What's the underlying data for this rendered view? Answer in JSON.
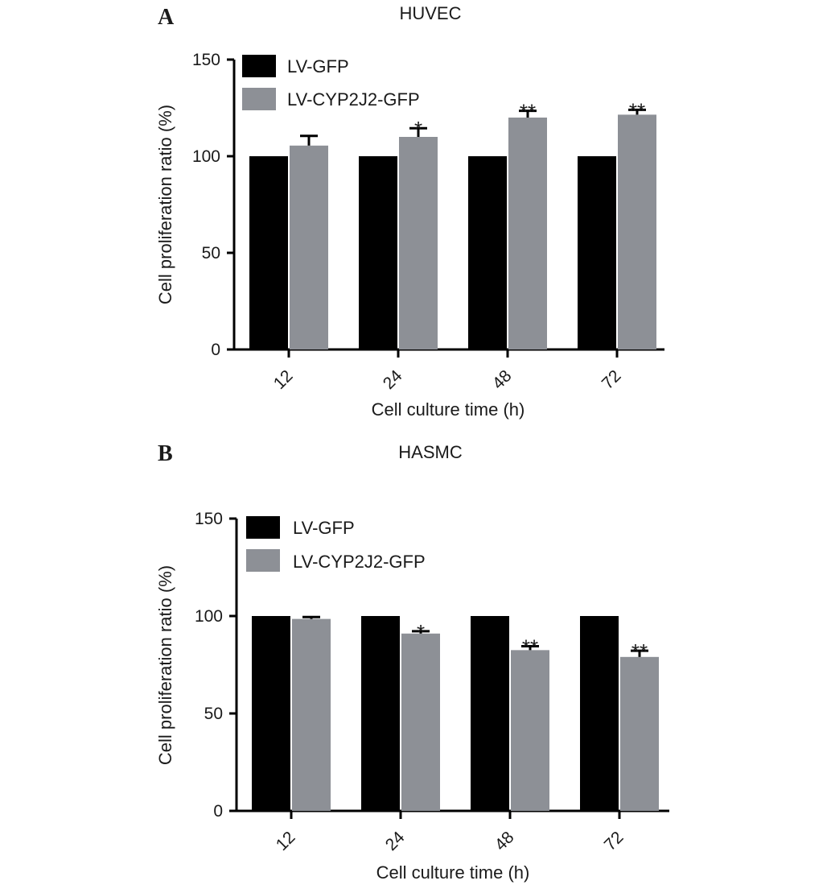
{
  "colors": {
    "series_1": "#000000",
    "series_2": "#8d9096",
    "axis": "#000000"
  },
  "chart_data": [
    {
      "type": "bar",
      "panel": "A",
      "title": "HUVEC",
      "xlabel": "Cell culture time (h)",
      "ylabel": "Cell proliferation ratio (%)",
      "categories": [
        "12",
        "24",
        "48",
        "72"
      ],
      "ylim": [
        0,
        150
      ],
      "yticks": [
        0,
        50,
        100,
        150
      ],
      "yticklabels": [
        "0",
        "50",
        "100",
        "150"
      ],
      "legend": "top-left",
      "grid": false,
      "series": [
        {
          "name": "LV-GFP",
          "values": [
            100,
            100,
            100,
            100
          ],
          "errors": [
            0,
            0,
            0,
            0
          ],
          "annotations": [
            "",
            "",
            "",
            ""
          ]
        },
        {
          "name": "LV-CYP2J2-GFP",
          "values": [
            105.5,
            110,
            120,
            121.5
          ],
          "errors": [
            5,
            4.5,
            3.5,
            2.5
          ],
          "annotations": [
            "",
            "*",
            "**",
            "**"
          ]
        }
      ]
    },
    {
      "type": "bar",
      "panel": "B",
      "title": "HASMC",
      "xlabel": "Cell culture time (h)",
      "ylabel": "Cell proliferation ratio (%)",
      "categories": [
        "12",
        "24",
        "48",
        "72"
      ],
      "ylim": [
        0,
        150
      ],
      "yticks": [
        0,
        50,
        100,
        150
      ],
      "yticklabels": [
        "0",
        "50",
        "100",
        "150"
      ],
      "legend": "top-left",
      "grid": false,
      "series": [
        {
          "name": "LV-GFP",
          "values": [
            100,
            100,
            100,
            100
          ],
          "errors": [
            0,
            0,
            0,
            0
          ],
          "annotations": [
            "",
            "",
            "",
            ""
          ]
        },
        {
          "name": "LV-CYP2J2-GFP",
          "values": [
            98.5,
            91,
            82.5,
            79
          ],
          "errors": [
            1,
            1.2,
            2,
            3.2
          ],
          "annotations": [
            "",
            "*",
            "**",
            "**"
          ]
        }
      ]
    }
  ]
}
